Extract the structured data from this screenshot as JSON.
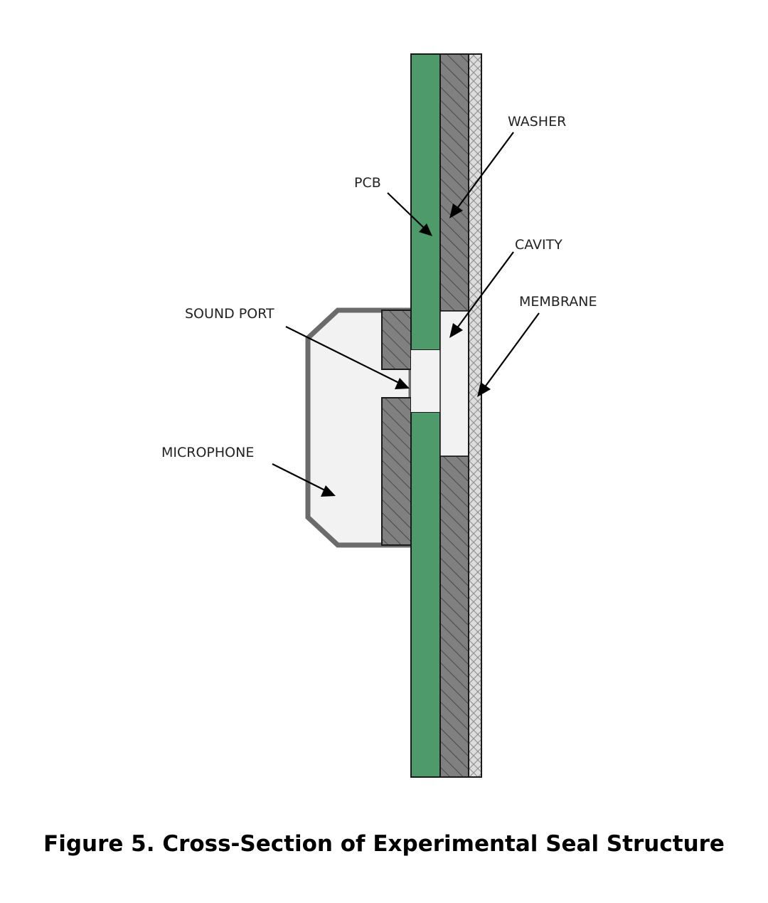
{
  "diagram": {
    "labels": {
      "washer": "WASHER",
      "pcb": "PCB",
      "cavity": "CAVITY",
      "membrane": "MEMBRANE",
      "sound_port": "SOUND PORT",
      "microphone": "MICROPHONE"
    },
    "colors": {
      "pcb": "#4f9a6a",
      "washer": "#808080",
      "membrane": "#d9d9d9",
      "cavity": "#f2f2f2",
      "outline": "#1a1a1a",
      "microphone_outline": "#6b6b6b"
    }
  },
  "caption": "Figure 5. Cross-Section of Experimental Seal Structure"
}
